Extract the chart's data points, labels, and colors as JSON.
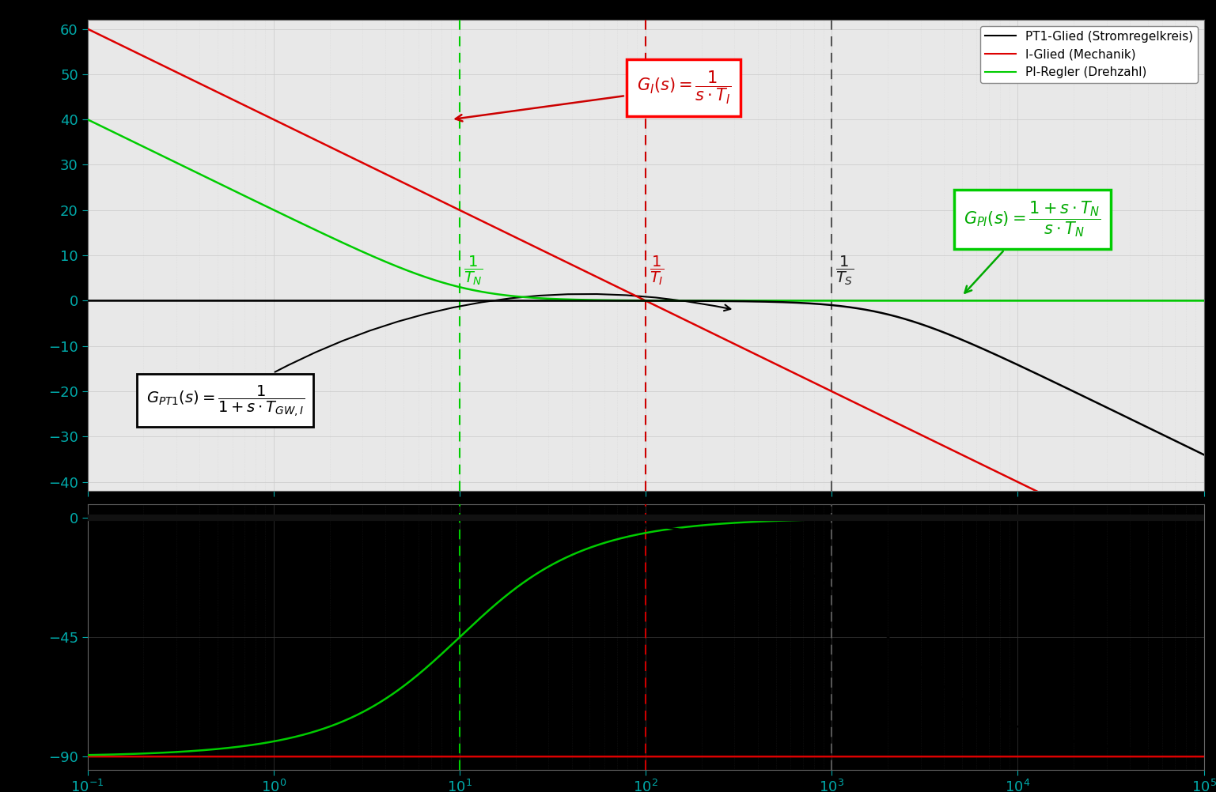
{
  "omega_min": 0.1,
  "omega_max": 100000,
  "num_points": 5000,
  "T_N": 0.1,
  "T_I": 0.01,
  "T_S": 0.001,
  "T_GW": 0.0005,
  "mag_ylim": [
    -42,
    62
  ],
  "mag_yticks": [
    -40,
    -30,
    -20,
    -10,
    0,
    10,
    20,
    30,
    40,
    50,
    60
  ],
  "phase_ylim": [
    -95,
    5
  ],
  "phase_yticks": [
    -90,
    -45,
    0
  ],
  "color_pt1": "#000000",
  "color_i": "#dd0000",
  "color_pi": "#00cc00",
  "background_color": "#000000",
  "mag_plot_bg": "#e8e8e8",
  "phase_plot_bg": "#000000",
  "grid_major_color": "#cccccc",
  "grid_minor_color": "#bbbbbb",
  "linewidth": 1.8,
  "legend_labels": [
    "PT1-Glied (Stromregelkreis)",
    "I-Glied (Mechanik)",
    "PI-Regler (Drehzahl)"
  ],
  "vline_TN_color": "#00cc00",
  "vline_TI_color": "#cc0000",
  "vline_TS_color": "#555555",
  "tick_color": "#00aaaa",
  "label_fontsize": 16,
  "annot_fontsize": 15
}
